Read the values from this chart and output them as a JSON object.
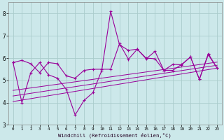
{
  "xlabel": "Windchill (Refroidissement éolien,°C)",
  "bg_color": "#cce8ea",
  "grid_color": "#aacccc",
  "line_color": "#990099",
  "xlim": [
    -0.5,
    23.5
  ],
  "ylim": [
    3,
    8.5
  ],
  "xticks": [
    0,
    1,
    2,
    3,
    4,
    5,
    6,
    7,
    8,
    9,
    10,
    11,
    12,
    13,
    14,
    15,
    16,
    17,
    18,
    19,
    20,
    21,
    22,
    23
  ],
  "yticks": [
    3,
    4,
    5,
    6,
    7,
    8
  ],
  "series1_x": [
    0,
    1,
    2,
    3,
    4,
    5,
    6,
    7,
    8,
    9,
    10,
    11,
    12,
    13,
    14,
    15,
    16,
    17,
    18,
    19,
    20,
    21,
    22,
    23
  ],
  "series1_y": [
    5.8,
    5.9,
    5.75,
    5.35,
    5.8,
    5.75,
    5.2,
    5.1,
    5.45,
    5.5,
    5.5,
    5.5,
    6.65,
    5.95,
    6.4,
    5.97,
    6.3,
    5.45,
    5.45,
    5.72,
    6.05,
    5.05,
    6.2,
    5.55
  ],
  "series2_x": [
    0,
    1,
    2,
    3,
    4,
    5,
    6,
    7,
    8,
    9,
    10,
    11,
    12,
    13,
    14,
    15,
    16,
    17,
    18,
    19,
    20,
    21,
    22,
    23
  ],
  "series2_y": [
    5.8,
    4.0,
    5.35,
    5.8,
    5.25,
    5.1,
    4.6,
    3.45,
    4.1,
    4.45,
    5.45,
    8.1,
    6.6,
    6.35,
    6.4,
    6.0,
    5.97,
    5.45,
    5.72,
    5.7,
    6.05,
    5.05,
    6.15,
    5.55
  ],
  "trend1_x": [
    0,
    23
  ],
  "trend1_y": [
    4.05,
    5.55
  ],
  "trend2_x": [
    0,
    23
  ],
  "trend2_y": [
    4.3,
    5.68
  ],
  "trend3_x": [
    0,
    23
  ],
  "trend3_y": [
    4.55,
    5.82
  ]
}
